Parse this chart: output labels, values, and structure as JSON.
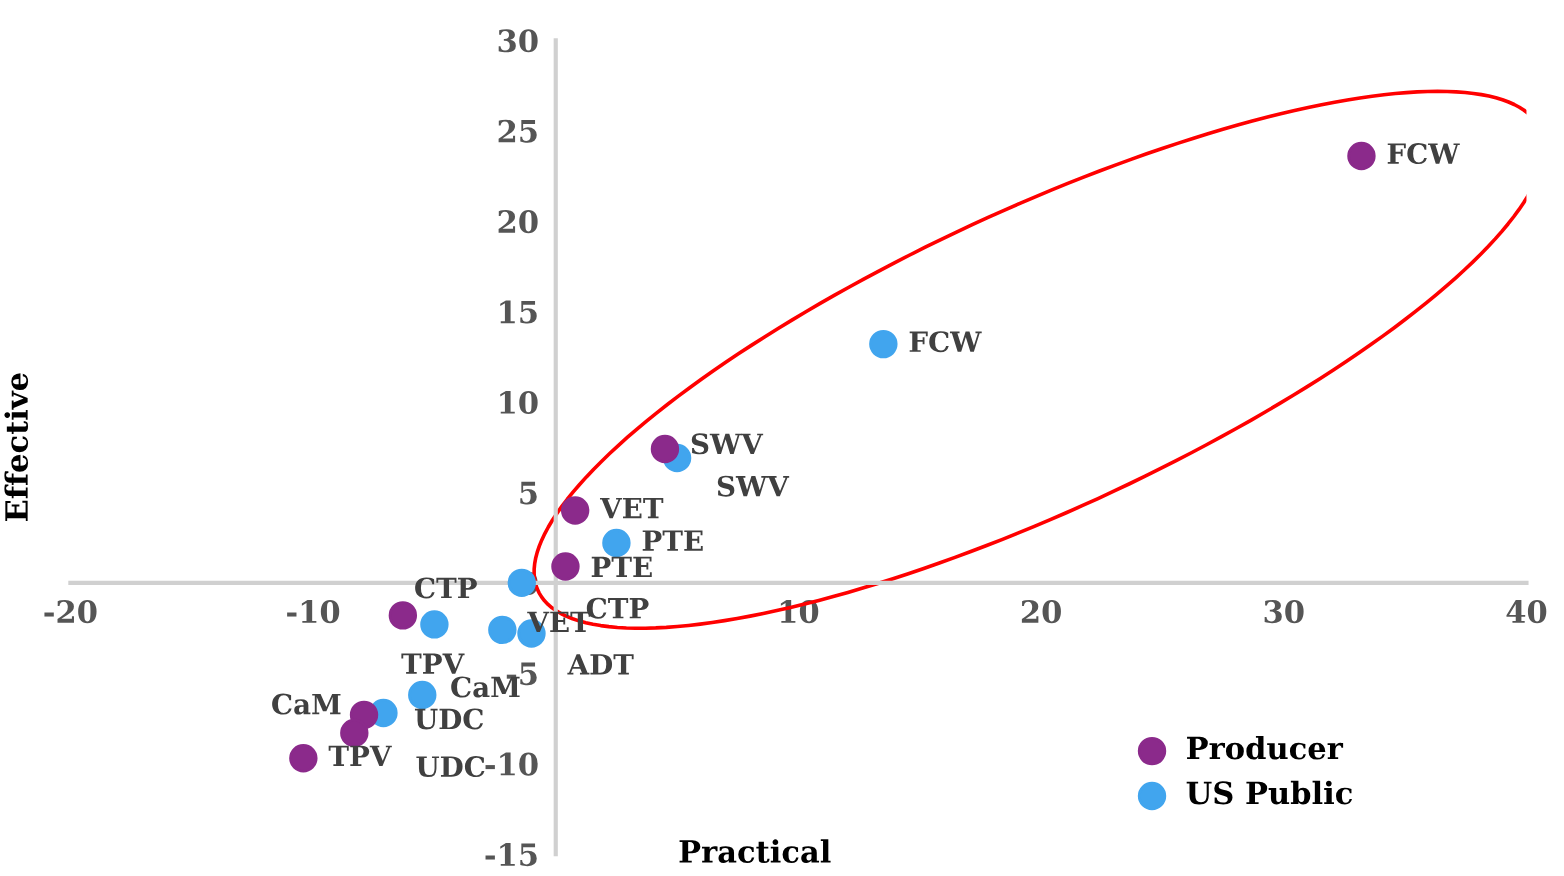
{
  "chart_data": {
    "type": "scatter",
    "xlabel": "Practical",
    "ylabel": "Effective",
    "series": [
      {
        "name": "Producer",
        "color": "#8b2a8b",
        "x": [
          33.2,
          4.5,
          0.8,
          0.4,
          -6.3,
          -7.9,
          -8.3,
          -10.4
        ],
        "values": [
          23.6,
          7.4,
          4.0,
          0.9,
          -1.8,
          -7.3,
          -8.3,
          -9.7
        ]
      },
      {
        "name": "US Public",
        "color": "#41a5ee",
        "x": [
          13.5,
          5.0,
          2.5,
          -1.4,
          -5.0,
          -2.2,
          -1.0,
          -5.5,
          -7.1
        ],
        "values": [
          13.2,
          6.9,
          2.2,
          0.0,
          -2.3,
          -2.6,
          -2.8,
          -6.2,
          -7.2
        ]
      }
    ],
    "annotations": [
      {
        "text": "FCW",
        "x": 33.2,
        "y": 23.6
      },
      {
        "text": "SWV",
        "x": 4.5,
        "y": 7.4
      },
      {
        "text": "VET",
        "x": 0.8,
        "y": 4.0
      },
      {
        "text": "PTE",
        "x": 0.4,
        "y": 0.9
      },
      {
        "text": "CTP",
        "x": -6.3,
        "y": -1.8
      },
      {
        "text": "CaM",
        "x": -7.9,
        "y": -7.3
      },
      {
        "text": "UDC",
        "x": -8.3,
        "y": -8.3
      },
      {
        "text": "TPV",
        "x": -10.4,
        "y": -9.7
      },
      {
        "text": "FCW",
        "x": 13.5,
        "y": 13.2
      },
      {
        "text": "SWV",
        "x": 5.0,
        "y": 6.9
      },
      {
        "text": "PTE",
        "x": 2.5,
        "y": 2.2
      },
      {
        "text": "CTP",
        "x": -1.4,
        "y": 0.0
      },
      {
        "text": "TPV",
        "x": -5.0,
        "y": -2.3
      },
      {
        "text": "VET",
        "x": -2.2,
        "y": -2.6
      },
      {
        "text": "ADT",
        "x": -1.0,
        "y": -2.8
      },
      {
        "text": "CaM",
        "x": -5.5,
        "y": -6.2
      },
      {
        "text": "UDC",
        "x": -7.1,
        "y": -7.2
      }
    ],
    "xlim": [
      -20,
      40
    ],
    "xticks": [
      -20,
      -10,
      10,
      20,
      30,
      40
    ],
    "ylim": [
      -15,
      30
    ],
    "yticks": [
      -15,
      -10,
      -5,
      0,
      5,
      10,
      15,
      20,
      25,
      30
    ],
    "marker": "circle",
    "legend": "bottom right",
    "grid": false
  }
}
